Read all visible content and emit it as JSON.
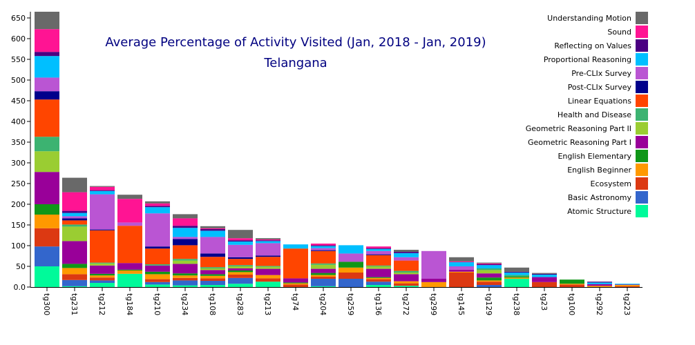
{
  "chart_data": {
    "type": "bar",
    "stacked": true,
    "title": "Average Percentage of Activity Visited (Jan, 2018 - Jan, 2019)",
    "subtitle": "Telangana",
    "ylim": [
      0,
      665
    ],
    "yticks": [
      0,
      50,
      100,
      150,
      200,
      250,
      300,
      350,
      400,
      450,
      500,
      550,
      600,
      650
    ],
    "ytick_labels": [
      "0.0",
      "50",
      "100",
      "150",
      "200",
      "250",
      "300",
      "350",
      "400",
      "450",
      "500",
      "550",
      "600",
      "650"
    ],
    "legend_position": "top-right",
    "categories": [
      "tg300",
      "tg231",
      "tg212",
      "tg184",
      "tg210",
      "tg234",
      "tg108",
      "tg283",
      "tg213",
      "tg74",
      "tg204",
      "tg259",
      "tg136",
      "tg272",
      "tg299",
      "tg145",
      "tg129",
      "tg238",
      "tg23",
      "tg100",
      "tg292",
      "tg223"
    ],
    "series": [
      {
        "name": "Atomic Structure",
        "color": "#00fa9a",
        "values": [
          50,
          2,
          10,
          32,
          6,
          4,
          5,
          8,
          13,
          0,
          2,
          0,
          5,
          3,
          0,
          0,
          0,
          20,
          0,
          0,
          0,
          0
        ]
      },
      {
        "name": "Basic Astronomy",
        "color": "#3366cc",
        "values": [
          48,
          15,
          6,
          0,
          6,
          12,
          10,
          14,
          0,
          0,
          18,
          20,
          8,
          0,
          0,
          0,
          5,
          0,
          0,
          0,
          0,
          0
        ]
      },
      {
        "name": "Ecosystem",
        "color": "#dc3912",
        "values": [
          44,
          14,
          7,
          0,
          7,
          6,
          6,
          8,
          8,
          6,
          5,
          15,
          6,
          6,
          0,
          35,
          8,
          0,
          12,
          6,
          0,
          2
        ]
      },
      {
        "name": "English Beginner",
        "color": "#ff9900",
        "values": [
          33,
          15,
          5,
          8,
          12,
          6,
          6,
          6,
          8,
          3,
          4,
          12,
          3,
          5,
          12,
          2,
          3,
          3,
          0,
          2,
          3,
          3
        ]
      },
      {
        "name": "English Elementary",
        "color": "#109618",
        "values": [
          25,
          10,
          4,
          2,
          6,
          5,
          4,
          4,
          0,
          2,
          5,
          14,
          2,
          0,
          0,
          0,
          7,
          2,
          0,
          10,
          0,
          0
        ]
      },
      {
        "name": "Geometric Reasoning Part I",
        "color": "#990099",
        "values": [
          78,
          55,
          20,
          16,
          15,
          23,
          10,
          5,
          15,
          10,
          10,
          0,
          20,
          17,
          8,
          5,
          10,
          0,
          12,
          0,
          4,
          1
        ]
      },
      {
        "name": "Geometric Reasoning Part II",
        "color": "#9acd32",
        "values": [
          50,
          35,
          5,
          0,
          0,
          8,
          4,
          5,
          5,
          0,
          10,
          0,
          6,
          4,
          0,
          0,
          8,
          0,
          0,
          0,
          0,
          0
        ]
      },
      {
        "name": "Health and Disease",
        "color": "#3cb371",
        "values": [
          35,
          5,
          2,
          0,
          3,
          4,
          3,
          3,
          2,
          0,
          3,
          0,
          2,
          4,
          0,
          0,
          4,
          4,
          0,
          0,
          0,
          0
        ]
      },
      {
        "name": "Linear Equations",
        "color": "#ff4500",
        "values": [
          90,
          10,
          78,
          90,
          38,
          33,
          25,
          15,
          22,
          72,
          30,
          0,
          25,
          25,
          0,
          0,
          0,
          0,
          0,
          0,
          0,
          0
        ]
      },
      {
        "name": "Post-CLIx Survey",
        "color": "#00008b",
        "values": [
          20,
          5,
          2,
          0,
          5,
          15,
          8,
          4,
          3,
          0,
          2,
          0,
          2,
          0,
          0,
          0,
          0,
          0,
          0,
          0,
          0,
          0
        ]
      },
      {
        "name": "Pre-CLIx Survey",
        "color": "#ba55d3",
        "values": [
          33,
          5,
          85,
          8,
          80,
          5,
          40,
          30,
          30,
          0,
          5,
          20,
          8,
          8,
          67,
          8,
          0,
          0,
          0,
          0,
          0,
          0
        ]
      },
      {
        "name": "Proportional Reasoning",
        "color": "#00bfff",
        "values": [
          52,
          8,
          8,
          0,
          15,
          22,
          15,
          8,
          5,
          10,
          5,
          20,
          5,
          10,
          0,
          10,
          8,
          6,
          6,
          0,
          4,
          2
        ]
      },
      {
        "name": "Reflecting on Values",
        "color": "#4b0082",
        "values": [
          10,
          5,
          2,
          0,
          3,
          5,
          4,
          3,
          2,
          0,
          2,
          0,
          2,
          3,
          0,
          0,
          2,
          2,
          2,
          0,
          2,
          0
        ]
      },
      {
        "name": "Sound",
        "color": "#ff1493",
        "values": [
          55,
          45,
          8,
          57,
          6,
          18,
          2,
          5,
          2,
          0,
          4,
          0,
          4,
          0,
          0,
          2,
          2,
          0,
          0,
          0,
          0,
          0
        ]
      },
      {
        "name": "Understanding Motion",
        "color": "#696969",
        "values": [
          42,
          35,
          2,
          10,
          5,
          10,
          5,
          20,
          3,
          0,
          0,
          0,
          0,
          5,
          0,
          10,
          2,
          10,
          2,
          0,
          0,
          0
        ]
      }
    ]
  }
}
